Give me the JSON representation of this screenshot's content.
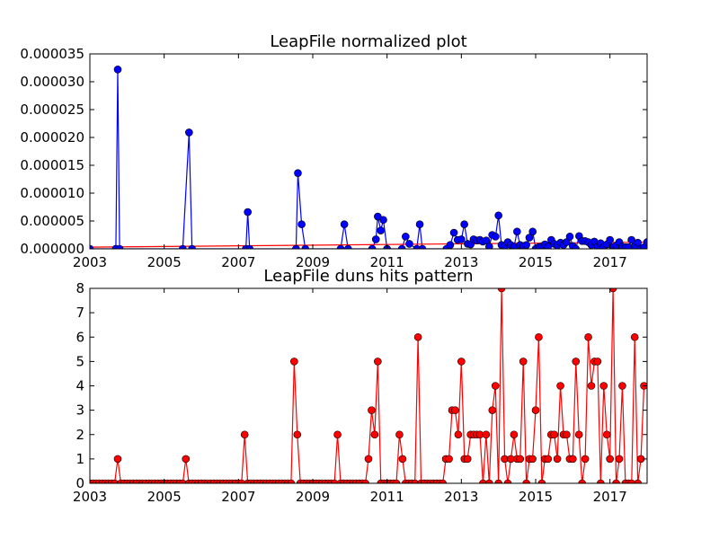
{
  "chart_data": [
    {
      "type": "line",
      "title": "LeapFile normalized plot",
      "xlabel": "",
      "ylabel": "",
      "xlim": [
        2003.0,
        2018.0
      ],
      "ylim": [
        0,
        3.5e-05
      ],
      "xticks": [
        2003,
        2005,
        2007,
        2009,
        2011,
        2013,
        2015,
        2017
      ],
      "yticks": [
        0,
        5e-06,
        1e-05,
        1.5e-05,
        2e-05,
        2.5e-05,
        3e-05,
        3.5e-05
      ],
      "ytick_labels": [
        "0.000000",
        "0.000005",
        "0.000010",
        "0.000015",
        "0.000020",
        "0.000025",
        "0.000030",
        "0.000035"
      ],
      "marker_color": "#0000ff",
      "line_color": "#0000ff",
      "trend_color": "#ff0000",
      "x": [
        2003.0,
        2003.7,
        2003.75,
        2003.8,
        2005.5,
        2005.67,
        2005.75,
        2007.2,
        2007.25,
        2007.3,
        2008.55,
        2008.6,
        2008.7,
        2008.8,
        2009.75,
        2009.85,
        2009.95,
        2010.6,
        2010.7,
        2010.75,
        2010.83,
        2010.9,
        2011.0,
        2011.4,
        2011.5,
        2011.6,
        2011.8,
        2011.88,
        2011.95,
        2012.6,
        2012.7,
        2012.8,
        2012.9,
        2013.0,
        2013.08,
        2013.17,
        2013.25,
        2013.33,
        2013.42,
        2013.5,
        2013.58,
        2013.67,
        2013.75,
        2013.83,
        2013.92,
        2014.0,
        2014.08,
        2014.17,
        2014.25,
        2014.33,
        2014.42,
        2014.5,
        2014.58,
        2014.67,
        2014.75,
        2014.83,
        2014.92,
        2015.0,
        2015.08,
        2015.17,
        2015.25,
        2015.33,
        2015.42,
        2015.5,
        2015.58,
        2015.67,
        2015.75,
        2015.83,
        2015.92,
        2016.0,
        2016.08,
        2016.17,
        2016.25,
        2016.33,
        2016.42,
        2016.5,
        2016.58,
        2016.67,
        2016.75,
        2016.83,
        2016.92,
        2017.0,
        2017.08,
        2017.17,
        2017.25,
        2017.33,
        2017.42,
        2017.5,
        2017.58,
        2017.67,
        2017.75,
        2017.83,
        2017.92,
        2018.0
      ],
      "y": [
        0,
        0,
        3.22e-05,
        0,
        0,
        2.09e-05,
        0,
        0,
        6.6e-06,
        0,
        0,
        1.36e-05,
        4.4e-06,
        0,
        0,
        4.4e-06,
        0,
        0,
        1.7e-06,
        5.8e-06,
        3.3e-06,
        5.2e-06,
        0,
        0,
        2.2e-06,
        9e-07,
        0,
        4.4e-06,
        0,
        0,
        7e-07,
        2.9e-06,
        1.6e-06,
        1.7e-06,
        4.4e-06,
        9e-07,
        8e-07,
        1.7e-06,
        1.5e-06,
        1.6e-06,
        1.3e-06,
        1.5e-06,
        4e-07,
        2.5e-06,
        2.2e-06,
        6e-06,
        7e-07,
        5e-07,
        1.2e-06,
        7e-07,
        4e-07,
        3.1e-06,
        7e-07,
        5e-07,
        7e-07,
        2e-06,
        3.1e-06,
        0,
        3e-07,
        5e-07,
        8e-07,
        4e-07,
        1.6e-06,
        9e-07,
        6e-07,
        1.1e-06,
        7e-07,
        1.2e-06,
        2.2e-06,
        5e-07,
        0,
        2.3e-06,
        1.4e-06,
        1.4e-06,
        1.2e-06,
        7e-07,
        1.3e-06,
        4e-07,
        1e-06,
        3e-07,
        8e-07,
        1.6e-06,
        3e-07,
        6e-07,
        1.2e-06,
        4e-07,
        3e-07,
        3e-07,
        1.6e-06,
        5e-07,
        1.1e-06,
        0,
        3e-07,
        1.2e-06
      ],
      "trend": {
        "x": [
          2003.0,
          2018.0
        ],
        "y": [
          3e-07,
          1.2e-06
        ]
      }
    },
    {
      "type": "line",
      "title": "LeapFile duns hits pattern",
      "xlabel": "",
      "ylabel": "",
      "xlim": [
        2003.0,
        2018.0
      ],
      "ylim": [
        0,
        8
      ],
      "xticks": [
        2003,
        2005,
        2007,
        2009,
        2011,
        2013,
        2015,
        2017
      ],
      "yticks": [
        0,
        1,
        2,
        3,
        4,
        5,
        6,
        7,
        8
      ],
      "marker_color": "#ff0000",
      "line_color": "#ff0000",
      "start": 2003.0,
      "step": 0.0833333,
      "values": [
        0,
        0,
        0,
        0,
        0,
        0,
        0,
        0,
        0,
        1,
        0,
        0,
        0,
        0,
        0,
        0,
        0,
        0,
        0,
        0,
        0,
        0,
        0,
        0,
        0,
        0,
        0,
        0,
        0,
        0,
        0,
        1,
        0,
        0,
        0,
        0,
        0,
        0,
        0,
        0,
        0,
        0,
        0,
        0,
        0,
        0,
        0,
        0,
        0,
        0,
        2,
        0,
        0,
        0,
        0,
        0,
        0,
        0,
        0,
        0,
        0,
        0,
        0,
        0,
        0,
        0,
        5,
        2,
        0,
        0,
        0,
        0,
        0,
        0,
        0,
        0,
        0,
        0,
        0,
        0,
        2,
        0,
        0,
        0,
        0,
        0,
        0,
        0,
        0,
        0,
        1,
        3,
        2,
        5,
        0,
        0,
        0,
        0,
        0,
        0,
        2,
        1,
        0,
        0,
        0,
        0,
        6,
        0,
        0,
        0,
        0,
        0,
        0,
        0,
        0,
        1,
        1,
        3,
        3,
        2,
        5,
        1,
        1,
        2,
        2,
        2,
        2,
        0,
        2,
        0,
        3,
        4,
        0,
        8,
        1,
        0,
        1,
        2,
        1,
        1,
        5,
        0,
        1,
        1,
        3,
        6,
        0,
        1,
        1,
        2,
        2,
        1,
        4,
        2,
        2,
        1,
        1,
        5,
        2,
        0,
        1,
        6,
        4,
        5,
        5,
        0,
        4,
        2,
        1,
        8,
        0,
        1,
        4,
        0,
        0,
        0,
        6,
        0,
        1,
        4
      ]
    }
  ]
}
